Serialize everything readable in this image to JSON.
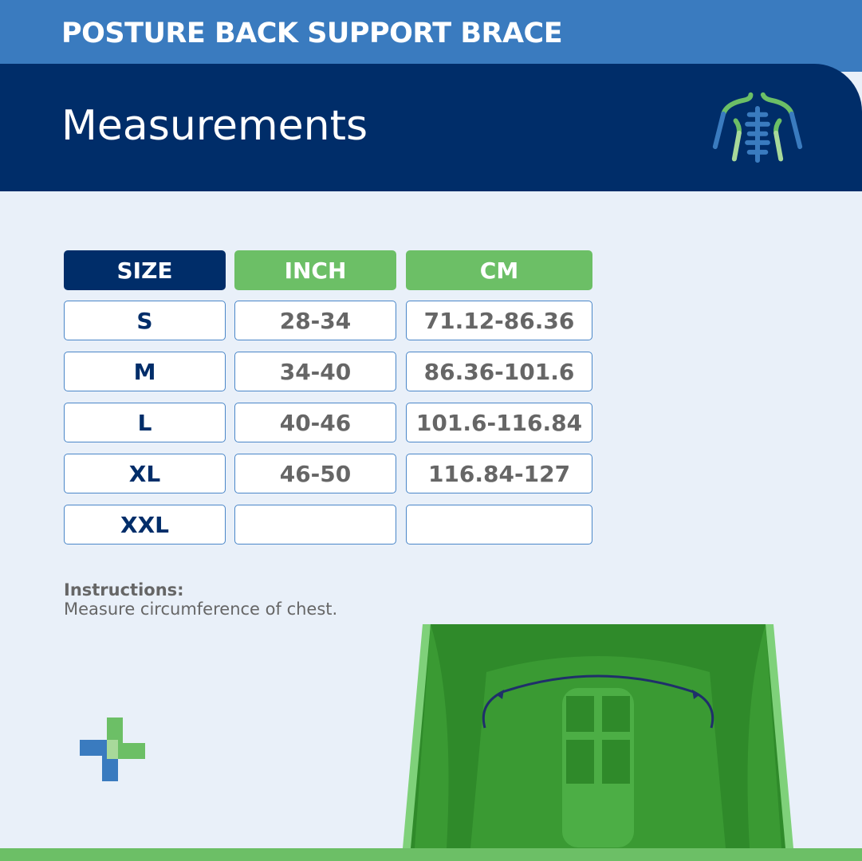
{
  "header": {
    "brand": "POSTURE BACK SUPPORT BRACE",
    "title": "Measurements"
  },
  "table": {
    "headers": [
      "SIZE",
      "INCH",
      "CM"
    ],
    "rows": [
      {
        "size": "S",
        "inch": "28-34",
        "cm": "71.12-86.36"
      },
      {
        "size": "M",
        "inch": "34-40",
        "cm": "86.36-101.6"
      },
      {
        "size": "L",
        "inch": "40-46",
        "cm": "101.6-116.84"
      },
      {
        "size": "XL",
        "inch": "46-50",
        "cm": "116.84-127"
      },
      {
        "size": "XXL",
        "inch": "",
        "cm": ""
      }
    ]
  },
  "instructions": {
    "label": "Instructions:",
    "text": "Measure circumference of chest."
  },
  "colors": {
    "navy": "#002d69",
    "blue": "#3a7bbf",
    "green": "#6cbf66"
  },
  "icons": [
    "spine-icon",
    "medical-cross-logo",
    "torso-illustration"
  ]
}
